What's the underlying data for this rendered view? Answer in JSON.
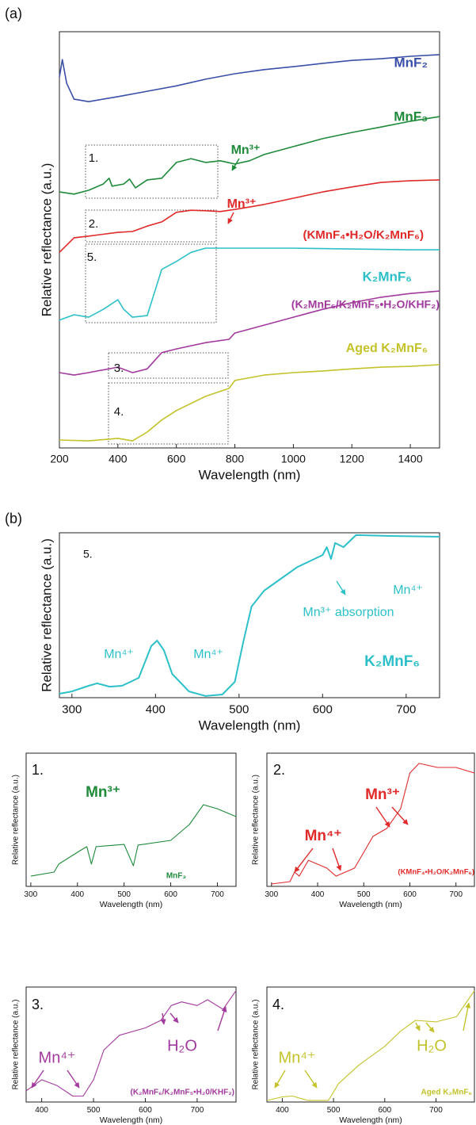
{
  "chart_data": [
    {
      "type": "line",
      "panel_label": "(a)",
      "x_label": "Wavelength (nm)",
      "y_label": "Relative reflectance (a.u.)",
      "xlim": [
        200,
        1500
      ],
      "xticks": [
        200,
        400,
        600,
        800,
        1000,
        1200,
        1400
      ],
      "ylim": [
        0,
        100
      ],
      "series": [
        {
          "name": "MnF₂",
          "color": "#3a4fa8",
          "x": [
            200,
            210,
            225,
            250,
            300,
            400,
            500,
            600,
            700,
            800,
            900,
            1000,
            1100,
            1200,
            1300,
            1400,
            1500
          ],
          "values": [
            89.1,
            93.3,
            87.6,
            83.8,
            83.2,
            84.4,
            85.7,
            87.0,
            88.6,
            89.9,
            90.9,
            91.6,
            92.4,
            93.1,
            93.5,
            94.1,
            94.5
          ]
        },
        {
          "name": "MnF₃",
          "color": "#1e8a3a",
          "x": [
            200,
            250,
            300,
            350,
            370,
            380,
            420,
            440,
            460,
            500,
            550,
            600,
            650,
            700,
            750,
            800,
            850,
            900,
            1000,
            1100,
            1200,
            1300,
            1400,
            1500
          ],
          "values": [
            61.5,
            61.0,
            61.9,
            63.4,
            64.8,
            62.9,
            63.4,
            64.6,
            62.5,
            64.4,
            64.8,
            68.6,
            69.5,
            68.6,
            69.0,
            68.2,
            69.0,
            70.5,
            72.4,
            74.3,
            75.8,
            77.1,
            78.5,
            79.6
          ]
        },
        {
          "name": "(KMnF₄•H₂O/K₂MnF₆)",
          "color": "#e02a2a",
          "x": [
            200,
            250,
            300,
            400,
            450,
            500,
            550,
            600,
            650,
            700,
            750,
            800,
            900,
            1000,
            1100,
            1200,
            1300,
            1400,
            1500
          ],
          "values": [
            47.0,
            50.5,
            50.9,
            51.8,
            52.0,
            53.3,
            54.3,
            56.6,
            57.1,
            57.0,
            56.8,
            57.3,
            58.5,
            60.0,
            61.5,
            62.7,
            63.8,
            64.2,
            64.4
          ]
        },
        {
          "name": "K₂MnF₆",
          "color": "#2ec0c8",
          "x": [
            200,
            250,
            300,
            350,
            400,
            420,
            450,
            500,
            520,
            550,
            600,
            650,
            700,
            800,
            1000,
            1200,
            1400,
            1500
          ],
          "values": [
            30.7,
            32.0,
            31.4,
            33.3,
            35.6,
            33.3,
            31.4,
            31.8,
            36.2,
            42.9,
            44.8,
            47.0,
            48.0,
            48.0,
            48.0,
            47.8,
            47.6,
            47.6
          ]
        },
        {
          "name": "(K₂MnF₆/K₂MnF₅•H₂O/KHF₂)",
          "color": "#a23a9e",
          "x": [
            200,
            250,
            300,
            400,
            450,
            500,
            550,
            600,
            700,
            780,
            800,
            900,
            1000,
            1100,
            1200,
            1300,
            1400,
            1500
          ],
          "values": [
            18.1,
            17.5,
            18.1,
            19.4,
            18.1,
            19.0,
            22.9,
            23.8,
            25.3,
            26.1,
            27.6,
            29.5,
            31.4,
            33.3,
            34.9,
            36.2,
            37.1,
            37.7
          ]
        },
        {
          "name": "Aged K₂MnF₆",
          "color": "#c4c22a",
          "x": [
            200,
            300,
            400,
            450,
            500,
            550,
            600,
            700,
            780,
            800,
            900,
            1000,
            1100,
            1200,
            1300,
            1400,
            1500
          ],
          "values": [
            1.9,
            1.7,
            2.3,
            1.7,
            3.8,
            6.7,
            9.0,
            12.4,
            14.3,
            16.2,
            17.5,
            18.1,
            18.5,
            19.0,
            19.4,
            19.6,
            20.0
          ]
        }
      ],
      "annotations": [
        "Mn³⁺",
        "Mn³⁺",
        "1.",
        "2.",
        "5.",
        "3.",
        "4."
      ]
    },
    {
      "type": "line",
      "panel_label": "(b)",
      "x_label": "Wavelength (nm)",
      "y_label": "Relative reflectance (a.u.)",
      "xlim": [
        285,
        740
      ],
      "xticks": [
        300,
        400,
        500,
        600,
        700
      ],
      "ylim": [
        0,
        100
      ],
      "series": [
        {
          "name": "K₂MnF₆",
          "color": "#2ec0c8",
          "x": [
            285,
            300,
            320,
            330,
            345,
            360,
            380,
            395,
            402,
            410,
            420,
            440,
            460,
            480,
            495,
            505,
            515,
            530,
            550,
            570,
            590,
            600,
            605,
            610,
            615,
            625,
            640,
            680,
            740
          ],
          "values": [
            2.4,
            3.8,
            7.2,
            8.7,
            6.7,
            7.2,
            12.0,
            31.3,
            34.6,
            28.8,
            14.4,
            3.8,
            1.0,
            1.9,
            9.6,
            33.7,
            55.3,
            64.9,
            72.1,
            79.3,
            84.1,
            86.5,
            91.3,
            84.1,
            93.8,
            91.3,
            98.6,
            98.1,
            97.6
          ]
        }
      ],
      "annotations": [
        "5.",
        "Mn⁴⁺",
        "Mn⁴⁺",
        "Mn⁴⁺",
        "Mn³⁺ absorption"
      ]
    },
    {
      "type": "line",
      "x_label": "Wavelength (nm)",
      "y_label": "Relative reflectance (a.u.)",
      "xlim": [
        290,
        740
      ],
      "xticks": [
        300,
        400,
        500,
        600,
        700
      ],
      "ylim": [
        0,
        100
      ],
      "series": [
        {
          "name": "MnF₃",
          "color": "#1e8a3a",
          "x": [
            300,
            350,
            360,
            400,
            420,
            430,
            440,
            500,
            520,
            530,
            600,
            640,
            670,
            700,
            740
          ],
          "values": [
            7.7,
            10.7,
            16.7,
            25.6,
            29.8,
            16.7,
            29.8,
            31.5,
            15.5,
            31.0,
            34.5,
            46.4,
            61.3,
            58.3,
            52.4
          ]
        }
      ],
      "annotations": [
        "1.",
        "Mn³⁺"
      ]
    },
    {
      "type": "line",
      "x_label": "Wavelength (nm)",
      "y_label": "Relative reflectance (a.u.)",
      "xlim": [
        290,
        740
      ],
      "xticks": [
        300,
        400,
        500,
        600,
        700
      ],
      "ylim": [
        0,
        100
      ],
      "series": [
        {
          "name": "(KMnF₄•H₂O/K₂MnF₆)",
          "color": "#e02a2a",
          "x": [
            300,
            340,
            350,
            360,
            380,
            420,
            440,
            480,
            500,
            520,
            550,
            580,
            600,
            620,
            660,
            700,
            740
          ],
          "values": [
            1.8,
            3.6,
            10.7,
            7.7,
            19.6,
            13.7,
            7.7,
            13.7,
            25.6,
            37.5,
            43.5,
            58.3,
            85.1,
            92.3,
            89.3,
            89.3,
            85.1
          ]
        }
      ],
      "annotations": [
        "2.",
        "Mn⁴⁺",
        "Mn³⁺"
      ]
    },
    {
      "type": "line",
      "x_label": "Wavelength (nm)",
      "y_label": "Relative reflectance (a.u.)",
      "xlim": [
        370,
        775
      ],
      "xticks": [
        400,
        500,
        600,
        700
      ],
      "ylim": [
        0,
        100
      ],
      "series": [
        {
          "name": "(K₂MnF₆/K₂MnF₅•H₂0/KHF₂)",
          "color": "#a23a9e",
          "x": [
            370,
            400,
            430,
            460,
            480,
            500,
            520,
            550,
            600,
            630,
            650,
            670,
            700,
            720,
            750,
            775
          ],
          "values": [
            9.7,
            19.4,
            14.2,
            5.2,
            5.2,
            19.4,
            45.2,
            58.1,
            64.5,
            71.0,
            83.9,
            87.1,
            83.9,
            89.0,
            80.6,
            96.8
          ]
        }
      ],
      "annotations": [
        "3.",
        "Mn⁴⁺",
        "H₂O"
      ]
    },
    {
      "type": "line",
      "x_label": "Wavelength (nm)",
      "y_label": "Relative reflectance (a.u.)",
      "xlim": [
        370,
        775
      ],
      "xticks": [
        400,
        500,
        600,
        700
      ],
      "ylim": [
        0,
        100
      ],
      "series": [
        {
          "name": "Aged K₂MnF₆",
          "color": "#c4c22a",
          "x": [
            370,
            400,
            420,
            450,
            490,
            510,
            550,
            600,
            630,
            660,
            700,
            740,
            775
          ],
          "values": [
            1.3,
            4.5,
            5.2,
            1.3,
            1.3,
            16.1,
            32.3,
            48.4,
            61.3,
            71.0,
            69.7,
            74.2,
            96.8
          ]
        }
      ],
      "annotations": [
        "4.",
        "Mn⁴⁺",
        "H₂O"
      ]
    }
  ]
}
